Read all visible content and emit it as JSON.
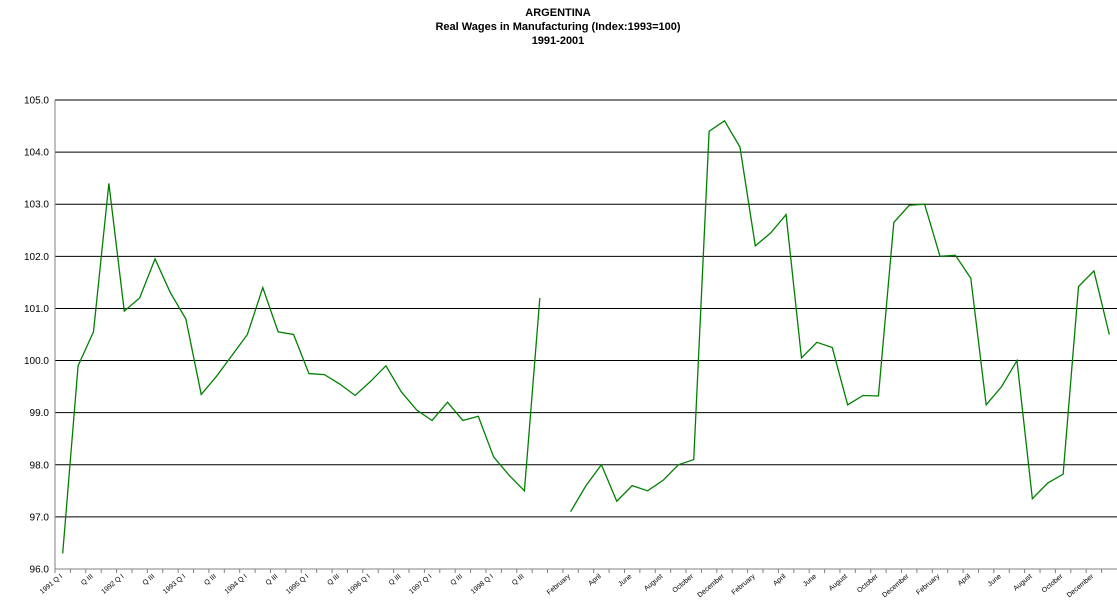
{
  "chart_data": {
    "type": "line",
    "title_lines": [
      "ARGENTINA",
      "Real Wages in Manufacturing (Index:1993=100)",
      "1991-2001"
    ],
    "categories": [
      "1991 Q I",
      null,
      "Q III",
      null,
      "1992 Q I",
      null,
      "Q III",
      null,
      "1993 Q I",
      null,
      "Q III",
      null,
      "1994 Q I",
      null,
      "Q III",
      null,
      "1995 Q I",
      null,
      "Q III",
      null,
      "1996 Q I",
      null,
      "Q III",
      null,
      "1997 Q I",
      null,
      "Q III",
      null,
      "1998 Q I",
      null,
      "Q III",
      null,
      null,
      "February",
      null,
      "April",
      null,
      "June",
      null,
      "August",
      null,
      "October",
      null,
      "December",
      null,
      "February",
      null,
      "April",
      null,
      "June",
      null,
      "August",
      null,
      "October",
      null,
      "December",
      null,
      "February",
      null,
      "April",
      null,
      "June",
      null,
      "August",
      null,
      "October",
      null,
      "December",
      null
    ],
    "values": [
      96.3,
      99.9,
      100.55,
      103.4,
      100.95,
      101.2,
      101.95,
      101.3,
      100.8,
      99.35,
      99.7,
      100.1,
      100.5,
      101.4,
      100.55,
      100.5,
      99.75,
      99.73,
      99.55,
      99.33,
      99.6,
      99.9,
      99.4,
      99.05,
      98.85,
      99.2,
      98.85,
      98.93,
      98.15,
      97.8,
      97.5,
      101.2,
      null,
      97.1,
      97.6,
      98.0,
      97.3,
      97.6,
      97.5,
      97.7,
      98.0,
      98.1,
      104.4,
      104.6,
      104.1,
      102.2,
      102.45,
      102.8,
      100.05,
      100.35,
      100.25,
      99.15,
      99.33,
      99.32,
      102.65,
      102.98,
      103.0,
      102.0,
      102.02,
      101.58,
      99.15,
      99.5,
      100.0,
      97.35,
      97.65,
      97.82,
      101.42,
      101.72,
      100.5
    ],
    "color": "#008000",
    "ylim": [
      96,
      105
    ],
    "yticks": [
      {
        "value": 96,
        "label": "96.0"
      },
      {
        "value": 97,
        "label": "97.0"
      },
      {
        "value": 98,
        "label": "98.0"
      },
      {
        "value": 99,
        "label": "99.0"
      },
      {
        "value": 100,
        "label": "100.0"
      },
      {
        "value": 101,
        "label": "101.0"
      },
      {
        "value": 102,
        "label": "102.0"
      },
      {
        "value": 103,
        "label": "103.0"
      },
      {
        "value": 104,
        "label": "104.0"
      },
      {
        "value": 105,
        "label": "105.0"
      }
    ],
    "grid": true
  }
}
